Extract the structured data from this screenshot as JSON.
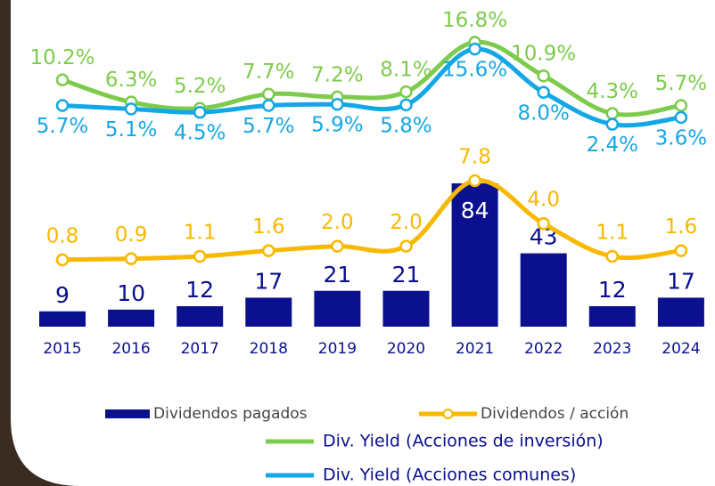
{
  "chart_data": {
    "type": "combo",
    "categories": [
      "2015",
      "2016",
      "2017",
      "2018",
      "2019",
      "2020",
      "2021",
      "2022",
      "2023",
      "2024"
    ],
    "series": [
      {
        "name": "Dividendos pagados",
        "type": "bar",
        "color": "#0b108f",
        "values": [
          9,
          10,
          12,
          17,
          21,
          21,
          84,
          43,
          12,
          17
        ]
      },
      {
        "name": "Dividendos / acción",
        "type": "line",
        "color": "#f7b800",
        "values": [
          0.8,
          0.9,
          1.1,
          1.6,
          2.0,
          2.0,
          7.8,
          4.0,
          1.1,
          1.6
        ],
        "value_labels": [
          "0.8",
          "0.9",
          "1.1",
          "1.6",
          "2.0",
          "2.0",
          "7.8",
          "4.0",
          "1.1",
          "1.6"
        ]
      },
      {
        "name": "Div. Yield (Acciones de inversión)",
        "type": "line",
        "color": "#7dcb4c",
        "values": [
          10.2,
          6.3,
          5.2,
          7.7,
          7.2,
          8.1,
          16.8,
          10.9,
          4.3,
          5.7
        ],
        "value_labels": [
          "10.2%",
          "6.3%",
          "5.2%",
          "7.7%",
          "7.2%",
          "8.1%",
          "16.8%",
          "10.9%",
          "4.3%",
          "5.7%"
        ]
      },
      {
        "name": "Div. Yield (Acciones comunes)",
        "type": "line",
        "color": "#14a7e6",
        "values": [
          5.7,
          5.1,
          4.5,
          5.7,
          5.9,
          5.8,
          15.6,
          8.0,
          2.4,
          3.6
        ],
        "value_labels": [
          "5.7%",
          "5.1%",
          "4.5%",
          "5.7%",
          "5.9%",
          "5.8%",
          "15.6%",
          "8.0%",
          "2.4%",
          "3.6%"
        ]
      }
    ]
  }
}
